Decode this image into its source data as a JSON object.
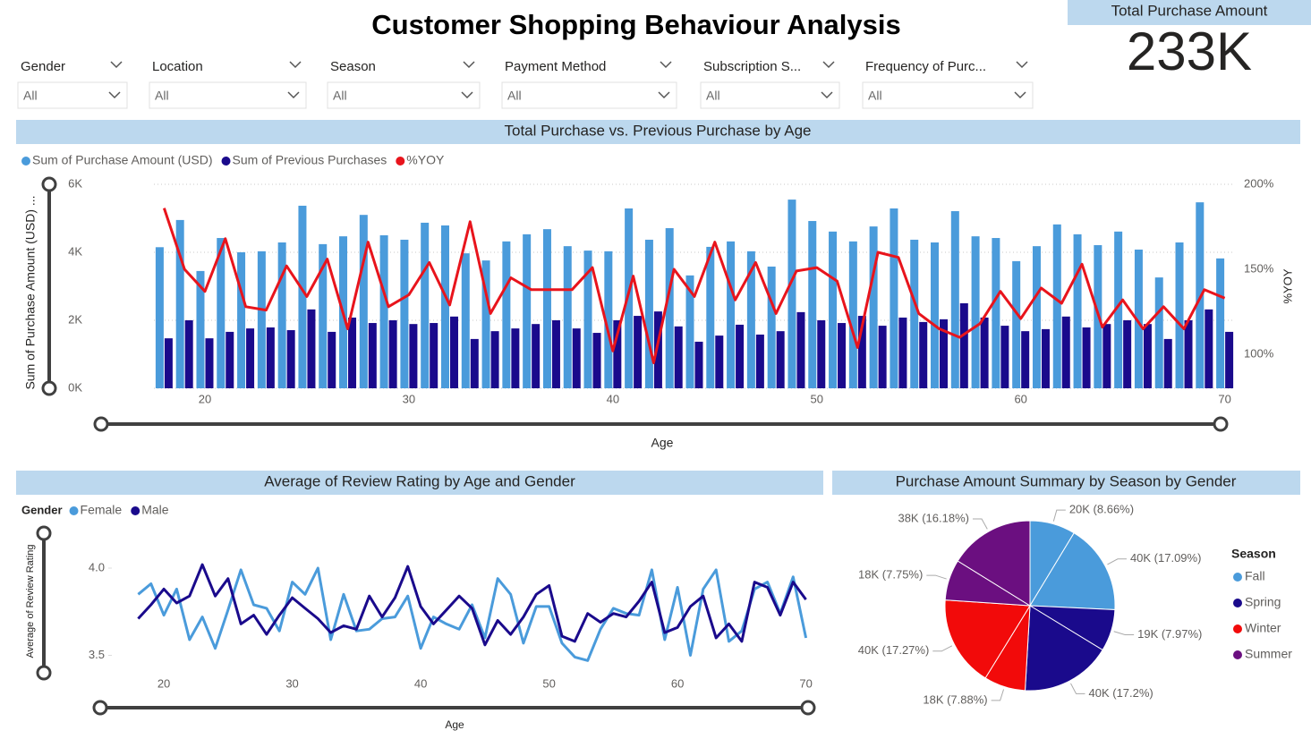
{
  "header": {
    "title": "Customer Shopping Behaviour Analysis"
  },
  "kpi": {
    "label": "Total Purchase Amount",
    "value": "233K"
  },
  "filters": [
    {
      "label": "Gender",
      "value": "All"
    },
    {
      "label": "Location",
      "value": "All"
    },
    {
      "label": "Season",
      "value": "All"
    },
    {
      "label": "Payment Method",
      "value": "All"
    },
    {
      "label": "Subscription S...",
      "value": "All"
    },
    {
      "label": "Frequency of Purc...",
      "value": "All"
    }
  ],
  "chart_data": [
    {
      "type": "combo",
      "title": "Total Purchase vs. Previous Purchase by Age",
      "x_label": "Age",
      "y_label": "Sum of Purchase Amount (USD) ...",
      "y2_label": "%YOY",
      "x": [
        18,
        19,
        20,
        21,
        22,
        23,
        24,
        25,
        26,
        27,
        28,
        29,
        30,
        31,
        32,
        33,
        34,
        35,
        36,
        37,
        38,
        39,
        40,
        41,
        42,
        43,
        44,
        45,
        46,
        47,
        48,
        49,
        50,
        51,
        52,
        53,
        54,
        55,
        56,
        57,
        58,
        59,
        60,
        61,
        62,
        63,
        64,
        65,
        66,
        67,
        68,
        69,
        70
      ],
      "xlim": [
        17.5,
        70.5
      ],
      "xticks": [
        20,
        30,
        40,
        50,
        60,
        70
      ],
      "ylim": [
        0,
        6000
      ],
      "yticks": [
        {
          "value": 0,
          "label": "0K"
        },
        {
          "value": 2000,
          "label": "2K"
        },
        {
          "value": 4000,
          "label": "4K"
        },
        {
          "value": 6000,
          "label": "6K"
        }
      ],
      "y2lim": [
        80,
        200
      ],
      "y2ticks": [
        {
          "value": 100,
          "label": "100%"
        },
        {
          "value": 150,
          "label": "150%"
        },
        {
          "value": 200,
          "label": "200%"
        }
      ],
      "grid": true,
      "series": [
        {
          "name": "Sum of Purchase Amount (USD)",
          "type": "bar",
          "color": "#4a9bdb",
          "values": [
            4150,
            4950,
            3450,
            4420,
            4000,
            4030,
            4290,
            5370,
            4240,
            4470,
            5100,
            4500,
            4370,
            4870,
            4790,
            3970,
            3760,
            4320,
            4530,
            4680,
            4180,
            4050,
            4030,
            5290,
            4370,
            4710,
            3320,
            4160,
            4320,
            4030,
            3580,
            5550,
            4920,
            4610,
            4320,
            4760,
            5290,
            4370,
            4290,
            5210,
            4470,
            4420,
            3740,
            4180,
            4820,
            4530,
            4210,
            4610,
            4080,
            3260,
            4290,
            5470,
            3820
          ]
        },
        {
          "name": "Sum of Previous Purchases",
          "type": "bar",
          "color": "#1a0a8c",
          "values": [
            1470,
            2000,
            1470,
            1660,
            1760,
            1790,
            1710,
            2320,
            1660,
            2080,
            1920,
            2000,
            1890,
            1920,
            2110,
            1450,
            1680,
            1760,
            1890,
            2000,
            1760,
            1630,
            2000,
            2130,
            2260,
            1820,
            1370,
            1550,
            1870,
            1580,
            1680,
            2240,
            2000,
            1920,
            2130,
            1840,
            2080,
            1950,
            2030,
            2500,
            2080,
            1840,
            1680,
            1740,
            2110,
            1790,
            1890,
            2000,
            1890,
            1450,
            2000,
            2320,
            1660
          ]
        },
        {
          "name": "%YOY",
          "type": "line",
          "axis": "y2",
          "color": "#e8141c",
          "values": [
            186,
            150,
            137,
            168,
            128,
            126,
            152,
            134,
            156,
            115,
            166,
            128,
            135,
            154,
            129,
            178,
            124,
            145,
            138,
            138,
            138,
            151,
            102,
            146,
            95,
            150,
            134,
            166,
            132,
            154,
            124,
            149,
            151,
            143,
            104,
            160,
            157,
            124,
            115,
            110,
            118,
            137,
            121,
            139,
            130,
            153,
            116,
            132,
            115,
            128,
            115,
            138,
            133
          ]
        }
      ]
    },
    {
      "type": "line",
      "title": "Average of Review Rating by Age and Gender",
      "legend_title": "Gender",
      "x_label": "Age",
      "y_label": "Average of Review Rating",
      "x": [
        18,
        19,
        20,
        21,
        22,
        23,
        24,
        25,
        26,
        27,
        28,
        29,
        30,
        31,
        32,
        33,
        34,
        35,
        36,
        37,
        38,
        39,
        40,
        41,
        42,
        43,
        44,
        45,
        46,
        47,
        48,
        49,
        50,
        51,
        52,
        53,
        54,
        55,
        56,
        57,
        58,
        59,
        60,
        61,
        62,
        63,
        64,
        65,
        66,
        67,
        68,
        69,
        70
      ],
      "xlim": [
        17,
        71
      ],
      "xticks": [
        20,
        30,
        40,
        50,
        60,
        70
      ],
      "ylim": [
        3.4,
        4.2
      ],
      "yticks": [
        {
          "value": 3.5,
          "label": "3.5"
        },
        {
          "value": 4,
          "label": "4.0"
        }
      ],
      "series": [
        {
          "name": "Female",
          "color": "#4a9bdb",
          "values": [
            3.85,
            3.91,
            3.73,
            3.88,
            3.59,
            3.72,
            3.54,
            3.76,
            3.99,
            3.79,
            3.77,
            3.64,
            3.92,
            3.85,
            4.0,
            3.59,
            3.85,
            3.64,
            3.65,
            3.71,
            3.72,
            3.84,
            3.54,
            3.72,
            3.68,
            3.65,
            3.79,
            3.6,
            3.94,
            3.85,
            3.57,
            3.78,
            3.78,
            3.57,
            3.49,
            3.47,
            3.65,
            3.77,
            3.74,
            3.73,
            3.99,
            3.59,
            3.89,
            3.5,
            3.88,
            3.99,
            3.58,
            3.64,
            3.88,
            3.92,
            3.74,
            3.95,
            3.6
          ]
        },
        {
          "name": "Male",
          "color": "#1a0a8c",
          "values": [
            3.71,
            3.79,
            3.88,
            3.8,
            3.84,
            4.02,
            3.84,
            3.94,
            3.68,
            3.73,
            3.62,
            3.73,
            3.83,
            3.77,
            3.71,
            3.63,
            3.67,
            3.65,
            3.84,
            3.72,
            3.83,
            4.01,
            3.78,
            3.68,
            3.76,
            3.84,
            3.77,
            3.56,
            3.7,
            3.62,
            3.72,
            3.85,
            3.9,
            3.61,
            3.58,
            3.74,
            3.69,
            3.74,
            3.72,
            3.81,
            3.92,
            3.63,
            3.66,
            3.78,
            3.84,
            3.6,
            3.68,
            3.58,
            3.92,
            3.89,
            3.73,
            3.92,
            3.82
          ]
        }
      ]
    },
    {
      "type": "pie",
      "title": "Purchase Amount Summary by Season by Gender",
      "legend_title": "Season",
      "series": [
        {
          "name": "Fall",
          "color": "#4a9bdb",
          "values": [
            20185,
            39834
          ],
          "value_labels": [
            "20K (8.66%)",
            "40K (17.09%)"
          ]
        },
        {
          "name": "Spring",
          "color": "#1a0a8c",
          "values": [
            18577,
            40090
          ],
          "value_labels": [
            "19K (7.97%)",
            "40K (17.2%)"
          ]
        },
        {
          "name": "Winter",
          "color": "#f20a0a",
          "values": [
            18367,
            40253
          ],
          "value_labels": [
            "18K (7.88%)",
            "40K (17.27%)"
          ]
        },
        {
          "name": "Summer",
          "color": "#6b0f80",
          "values": [
            18064,
            37713
          ],
          "value_labels": [
            "18K (7.75%)",
            "38K (16.18%)"
          ]
        }
      ]
    }
  ]
}
